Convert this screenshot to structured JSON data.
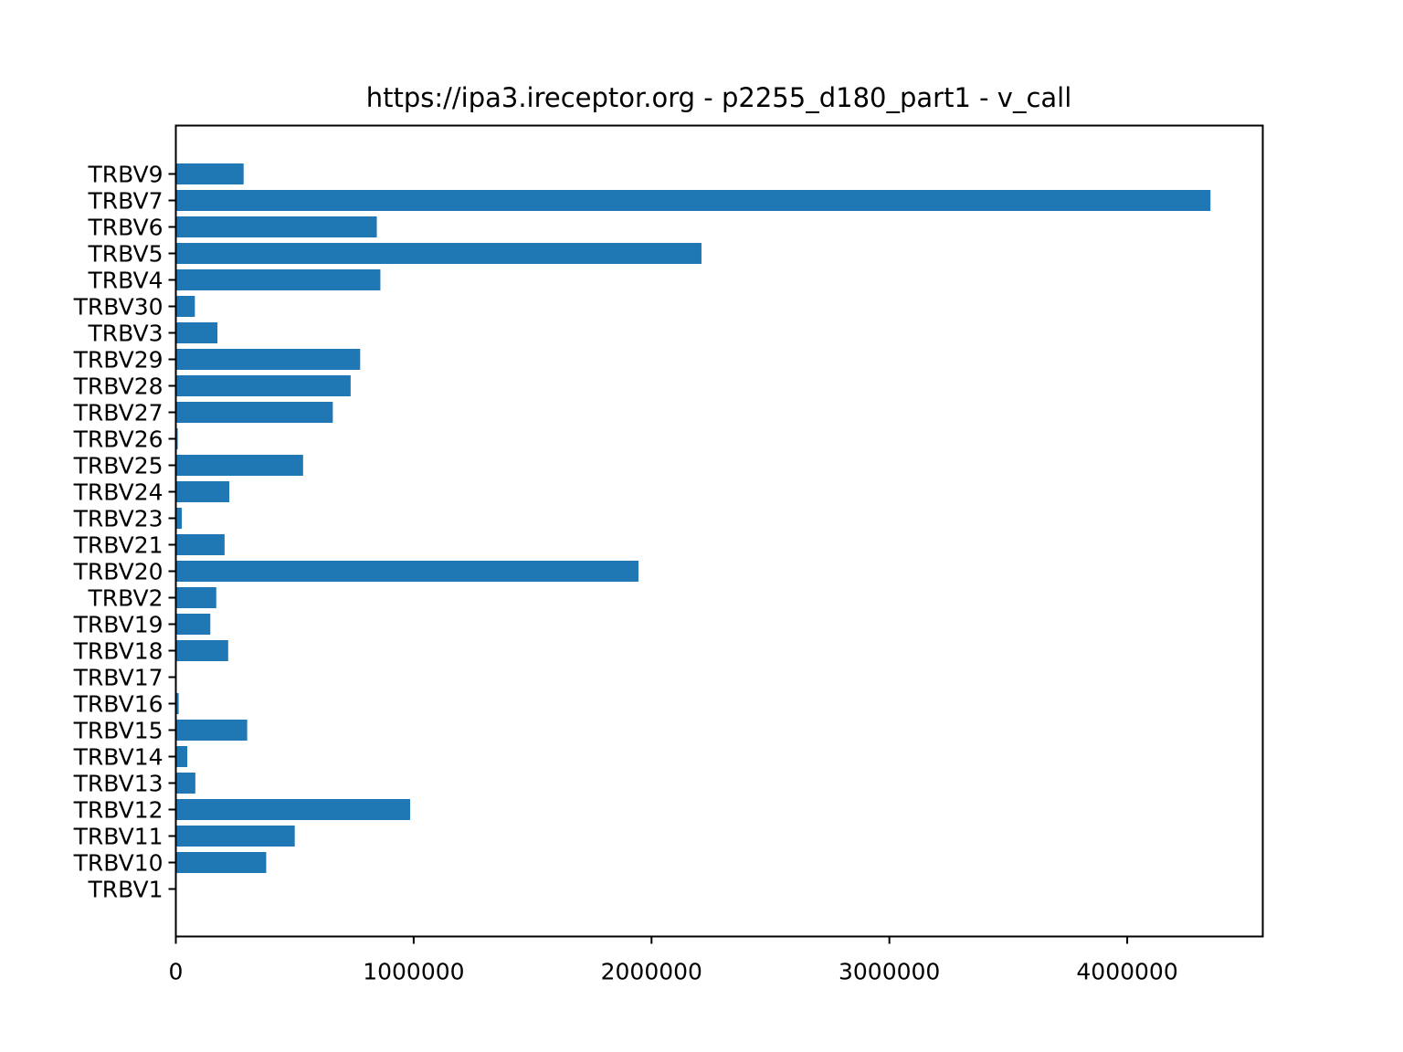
{
  "chart_data": {
    "type": "bar",
    "orientation": "horizontal",
    "title": "https://ipa3.ireceptor.org - p2255_d180_part1 - v_call",
    "xlabel": "",
    "ylabel": "",
    "xlim": [
      0,
      4570000
    ],
    "xticks": [
      0,
      1000000,
      2000000,
      3000000,
      4000000
    ],
    "xtick_labels": [
      "0",
      "1000000",
      "2000000",
      "3000000",
      "4000000"
    ],
    "grid": false,
    "bar_color": "#1f77b4",
    "categories": [
      "TRBV1",
      "TRBV10",
      "TRBV11",
      "TRBV12",
      "TRBV13",
      "TRBV14",
      "TRBV15",
      "TRBV16",
      "TRBV17",
      "TRBV18",
      "TRBV19",
      "TRBV2",
      "TRBV20",
      "TRBV21",
      "TRBV23",
      "TRBV24",
      "TRBV25",
      "TRBV26",
      "TRBV27",
      "TRBV28",
      "TRBV29",
      "TRBV3",
      "TRBV30",
      "TRBV4",
      "TRBV5",
      "TRBV6",
      "TRBV7",
      "TRBV9"
    ],
    "values": [
      1000,
      380000,
      500000,
      985000,
      82000,
      48000,
      300000,
      12000,
      1500,
      220000,
      145000,
      170000,
      1945000,
      205000,
      25000,
      225000,
      535000,
      8000,
      660000,
      735000,
      775000,
      175000,
      80000,
      860000,
      2210000,
      845000,
      4350000,
      285000
    ]
  }
}
